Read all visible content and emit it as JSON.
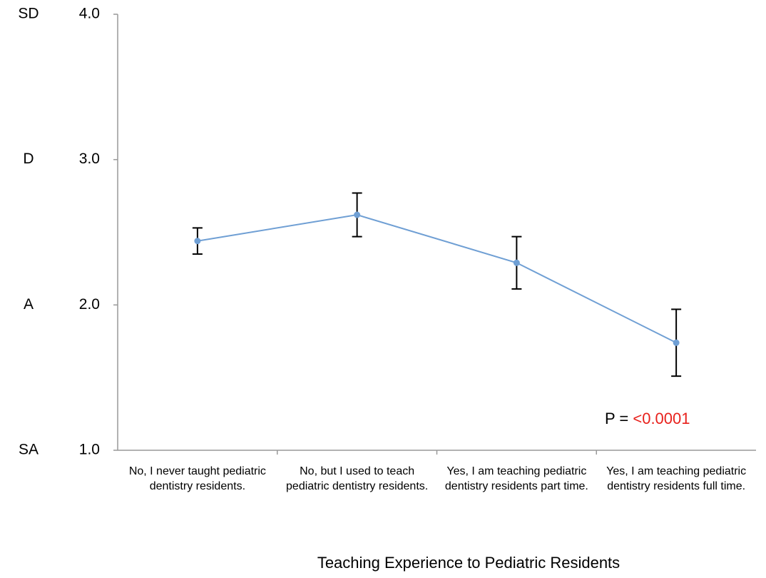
{
  "chart_data": {
    "type": "line",
    "x_label": "Teaching Experience to Pediatric Residents",
    "categories": [
      "No, I never taught pediatric dentistry residents.",
      "No, but I used to teach pediatric dentistry residents.",
      "Yes, I am teaching pediatric dentistry residents part time.",
      "Yes, I am teaching pediatric dentistry residents full time."
    ],
    "values": [
      2.44,
      2.62,
      2.29,
      1.74
    ],
    "errors": [
      0.09,
      0.15,
      0.18,
      0.23
    ],
    "color": "#6f9fd4",
    "error_color": "#000000",
    "ylim": [
      1.0,
      4.0
    ],
    "yticks": [
      {
        "value": 1,
        "label": "1.0"
      },
      {
        "value": 2,
        "label": "2.0"
      },
      {
        "value": 3,
        "label": "3.0"
      },
      {
        "value": 4,
        "label": "4.0"
      }
    ],
    "scale_labels": [
      {
        "value": 1,
        "label": "SA"
      },
      {
        "value": 2,
        "label": "A"
      },
      {
        "value": 3,
        "label": "D"
      },
      {
        "value": 4,
        "label": "SD"
      }
    ],
    "annotation": {
      "prefix": "P = ",
      "text": "<0.0001",
      "color": "#e8211c"
    }
  }
}
